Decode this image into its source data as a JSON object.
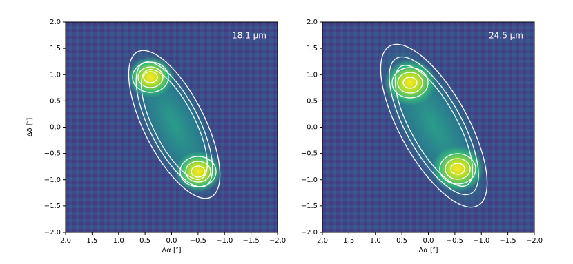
{
  "chart_data": [
    {
      "type": "image",
      "annotation": "18.1 μm",
      "xlabel": "Δα [″]",
      "ylabel": "Δδ [″]",
      "xlim": [
        2,
        -2
      ],
      "ylim": [
        -2,
        2
      ],
      "xticks": [
        {
          "value": 2,
          "label": "2.0"
        },
        {
          "value": 1.5,
          "label": "1.5"
        },
        {
          "value": 1,
          "label": "1.0"
        },
        {
          "value": 0.5,
          "label": "0.5"
        },
        {
          "value": 0,
          "label": "0.0"
        },
        {
          "value": -0.5,
          "label": "−0.5"
        },
        {
          "value": -1,
          "label": "−1.0"
        },
        {
          "value": -1.5,
          "label": "−1.5"
        },
        {
          "value": -2,
          "label": "−2.0"
        }
      ],
      "yticks": [
        {
          "value": -2,
          "label": "−2.0"
        },
        {
          "value": -1.5,
          "label": "−1.5"
        },
        {
          "value": -1,
          "label": "−1.0"
        },
        {
          "value": -0.5,
          "label": "−0.5"
        },
        {
          "value": 0,
          "label": "0.0"
        },
        {
          "value": 0.5,
          "label": "0.5"
        },
        {
          "value": 1,
          "label": "1.0"
        },
        {
          "value": 1.5,
          "label": "1.5"
        },
        {
          "value": 2,
          "label": "2.0"
        }
      ]
    },
    {
      "type": "image",
      "annotation": "24.5 μm",
      "xlabel": "Δα [″]",
      "xlim": [
        2,
        -2
      ],
      "ylim": [
        -2,
        2
      ],
      "xticks": [
        {
          "value": 2,
          "label": "2.0"
        },
        {
          "value": 1.5,
          "label": "1.5"
        },
        {
          "value": 1,
          "label": "1.0"
        },
        {
          "value": 0.5,
          "label": "0.5"
        },
        {
          "value": 0,
          "label": "0.0"
        },
        {
          "value": -0.5,
          "label": "−0.5"
        },
        {
          "value": -1,
          "label": "−1.0"
        },
        {
          "value": -1.5,
          "label": "−1.5"
        },
        {
          "value": -2,
          "label": "−2.0"
        }
      ],
      "yticks": [
        {
          "value": -2,
          "label": "−2.0"
        },
        {
          "value": -1.5,
          "label": "−1.5"
        },
        {
          "value": -1,
          "label": "−1.0"
        },
        {
          "value": -0.5,
          "label": "−0.5"
        },
        {
          "value": 0,
          "label": "0.0"
        },
        {
          "value": 0.5,
          "label": "0.5"
        },
        {
          "value": 1,
          "label": "1.0"
        },
        {
          "value": 1.5,
          "label": "1.5"
        },
        {
          "value": 2,
          "label": "2.0"
        }
      ]
    }
  ]
}
